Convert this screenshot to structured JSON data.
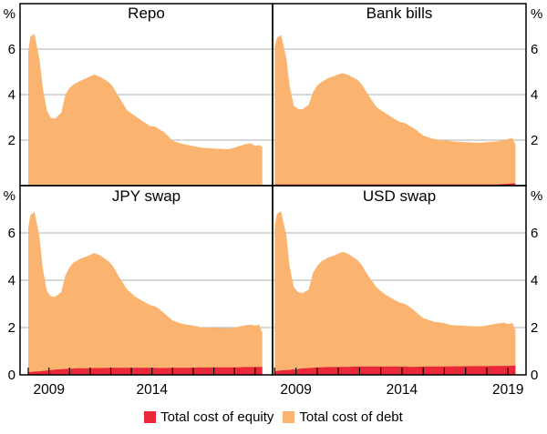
{
  "legend": {
    "items": [
      {
        "label": "Total cost of equity",
        "color": "#ea2839"
      },
      {
        "label": "Total cost of debt",
        "color": "#fbb46f"
      }
    ]
  },
  "colors": {
    "equity": "#ea2839",
    "debt": "#fbb46f",
    "grid": "#b0b0b0",
    "axis": "#000000",
    "background": "#ffffff"
  },
  "chart_data": {
    "type": "area",
    "stacked": true,
    "layout": "2x2-panels",
    "y_axis": {
      "unit": "%",
      "min": 0,
      "max": 8,
      "tick_values": [
        0,
        2,
        4,
        6
      ],
      "gridlines": [
        2,
        4,
        6
      ]
    },
    "x_axis": {
      "tick_years": [
        2008,
        2009,
        2010,
        2011,
        2012,
        2013,
        2014,
        2015,
        2016,
        2017,
        2018,
        2019
      ],
      "left_range": [
        2007.6,
        2019.85
      ],
      "right_range": [
        2007.9,
        2019.85
      ],
      "labels_left": [
        {
          "text": "2009",
          "year": 2009
        },
        {
          "text": "2014",
          "year": 2014
        }
      ],
      "labels_right": [
        {
          "text": "2009",
          "year": 2009
        },
        {
          "text": "2014",
          "year": 2014
        },
        {
          "text": "2019",
          "year": 2019
        }
      ]
    },
    "x": [
      2008.0,
      2008.1,
      2008.3,
      2008.55,
      2008.7,
      2008.9,
      2009.1,
      2009.3,
      2009.6,
      2009.8,
      2010.0,
      2010.2,
      2010.5,
      2010.8,
      2011.2,
      2011.5,
      2011.9,
      2012.1,
      2012.4,
      2012.8,
      2013.2,
      2013.7,
      2013.9,
      2014.15,
      2014.4,
      2014.6,
      2015.0,
      2015.5,
      2015.9,
      2016.35,
      2016.8,
      2017.2,
      2017.7,
      2018.1,
      2018.55,
      2018.8,
      2019.0,
      2019.2,
      2019.35
    ],
    "panels": [
      {
        "title": "Repo",
        "series": [
          {
            "name": "Total cost of equity",
            "values": [
              0,
              0,
              0,
              0,
              0,
              0,
              0,
              0,
              0,
              0,
              0,
              0,
              0,
              0,
              0,
              0,
              0,
              0,
              0,
              0,
              0,
              0,
              0,
              0,
              0,
              0,
              0,
              0,
              0,
              0,
              0,
              0,
              0,
              0,
              0,
              0,
              0,
              0,
              0
            ]
          },
          {
            "name": "Total cost of debt",
            "values": [
              5.9,
              6.55,
              6.68,
              5.5,
              4.3,
              3.3,
              2.97,
              2.95,
              3.2,
              4.0,
              4.3,
              4.45,
              4.6,
              4.72,
              4.88,
              4.78,
              4.55,
              4.35,
              3.9,
              3.3,
              3.05,
              2.74,
              2.62,
              2.6,
              2.45,
              2.35,
              1.97,
              1.83,
              1.76,
              1.67,
              1.64,
              1.62,
              1.6,
              1.7,
              1.83,
              1.85,
              1.75,
              1.78,
              1.7
            ]
          }
        ]
      },
      {
        "title": "Bank bills",
        "series": [
          {
            "name": "Total cost of equity",
            "values": [
              0.05,
              0.05,
              0.05,
              0.05,
              0.05,
              0.05,
              0.05,
              0.05,
              0.05,
              0.05,
              0.05,
              0.05,
              0.05,
              0.05,
              0.05,
              0.05,
              0.05,
              0.05,
              0.05,
              0.05,
              0.05,
              0.05,
              0.05,
              0.05,
              0.05,
              0.05,
              0.05,
              0.05,
              0.05,
              0.05,
              0.05,
              0.05,
              0.05,
              0.05,
              0.05,
              0.07,
              0.08,
              0.1,
              0.1
            ]
          },
          {
            "name": "Total cost of debt",
            "values": [
              6.05,
              6.45,
              6.57,
              5.55,
              4.35,
              3.45,
              3.32,
              3.3,
              3.5,
              4.05,
              4.35,
              4.5,
              4.67,
              4.77,
              4.9,
              4.8,
              4.6,
              4.4,
              3.95,
              3.4,
              3.15,
              2.85,
              2.75,
              2.7,
              2.55,
              2.45,
              2.15,
              2.0,
              1.95,
              1.9,
              1.87,
              1.85,
              1.83,
              1.87,
              1.9,
              1.93,
              1.97,
              2.0,
              1.7
            ]
          }
        ]
      },
      {
        "title": "JPY swap",
        "series": [
          {
            "name": "Total cost of equity",
            "values": [
              0.1,
              0.12,
              0.14,
              0.15,
              0.16,
              0.18,
              0.2,
              0.22,
              0.24,
              0.25,
              0.26,
              0.27,
              0.28,
              0.28,
              0.29,
              0.29,
              0.3,
              0.3,
              0.3,
              0.3,
              0.3,
              0.3,
              0.3,
              0.3,
              0.29,
              0.29,
              0.3,
              0.3,
              0.3,
              0.31,
              0.31,
              0.32,
              0.32,
              0.32,
              0.33,
              0.33,
              0.33,
              0.34,
              0.34
            ]
          },
          {
            "name": "Total cost of debt",
            "values": [
              6.1,
              6.63,
              6.76,
              5.65,
              4.34,
              3.37,
              3.12,
              3.08,
              3.26,
              3.95,
              4.29,
              4.48,
              4.62,
              4.72,
              4.86,
              4.76,
              4.5,
              4.3,
              3.85,
              3.3,
              3.0,
              2.75,
              2.65,
              2.6,
              2.46,
              2.31,
              2.0,
              1.85,
              1.8,
              1.71,
              1.69,
              1.66,
              1.65,
              1.7,
              1.77,
              1.79,
              1.75,
              1.78,
              1.46
            ]
          }
        ]
      },
      {
        "title": "USD swap",
        "series": [
          {
            "name": "Total cost of equity",
            "values": [
              0.15,
              0.17,
              0.19,
              0.2,
              0.21,
              0.23,
              0.25,
              0.27,
              0.29,
              0.3,
              0.31,
              0.32,
              0.33,
              0.33,
              0.34,
              0.34,
              0.35,
              0.35,
              0.35,
              0.35,
              0.35,
              0.35,
              0.35,
              0.35,
              0.34,
              0.34,
              0.35,
              0.35,
              0.35,
              0.36,
              0.36,
              0.37,
              0.37,
              0.37,
              0.38,
              0.38,
              0.38,
              0.39,
              0.39
            ]
          },
          {
            "name": "Total cost of debt",
            "values": [
              6.15,
              6.63,
              6.73,
              5.7,
              4.39,
              3.47,
              3.25,
              3.18,
              3.31,
              4.0,
              4.29,
              4.48,
              4.62,
              4.72,
              4.86,
              4.76,
              4.5,
              4.3,
              3.85,
              3.35,
              3.05,
              2.8,
              2.7,
              2.65,
              2.51,
              2.36,
              2.05,
              1.9,
              1.85,
              1.74,
              1.72,
              1.69,
              1.68,
              1.73,
              1.8,
              1.82,
              1.77,
              1.81,
              1.51
            ]
          }
        ]
      }
    ]
  }
}
